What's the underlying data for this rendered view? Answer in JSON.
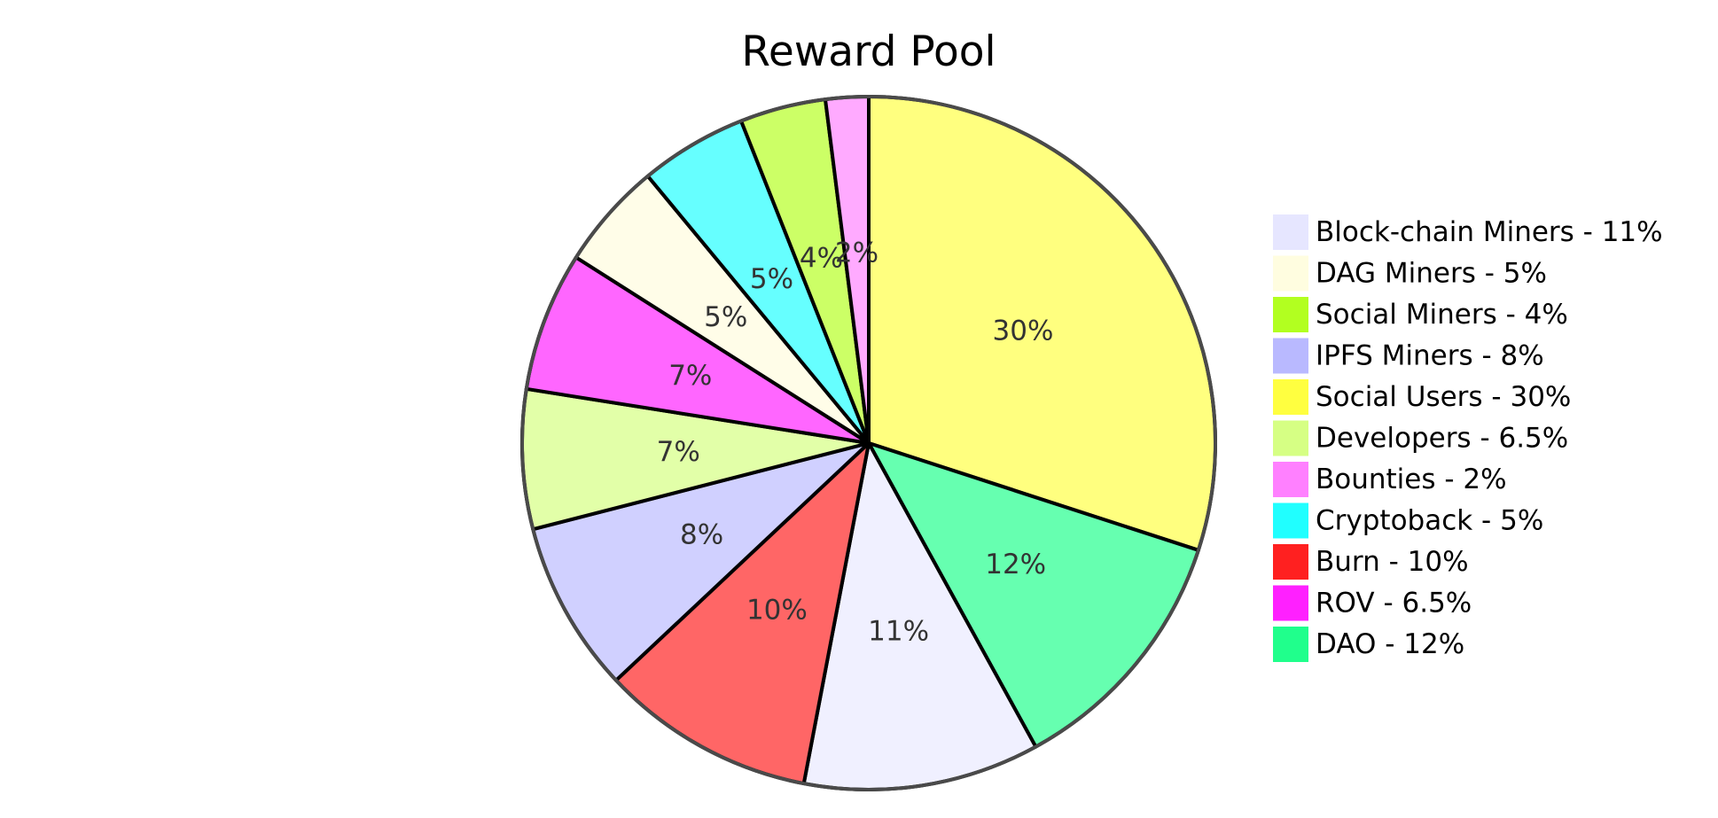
{
  "chart_data": {
    "type": "pie",
    "title": "Reward Pool",
    "slices": [
      {
        "label": "Social Users",
        "value": 30,
        "display": "30%",
        "color": "#ffff7f",
        "legend_color": "#ffff40"
      },
      {
        "label": "DAO",
        "value": 12,
        "display": "12%",
        "color": "#66ffb0",
        "legend_color": "#20ff8c"
      },
      {
        "label": "Block-chain Miners",
        "value": 11,
        "display": "11%",
        "color": "#f0f0ff",
        "legend_color": "#e6e6ff"
      },
      {
        "label": "Burn",
        "value": 10,
        "display": "10%",
        "color": "#ff6666",
        "legend_color": "#ff2020"
      },
      {
        "label": "IPFS Miners",
        "value": 8,
        "display": "8%",
        "color": "#d0d0ff",
        "legend_color": "#b9b9ff"
      },
      {
        "label": "Developers",
        "value": 6.5,
        "display": "7%",
        "color": "#e2ffa8",
        "legend_color": "#d6ff84"
      },
      {
        "label": "ROV",
        "value": 6.5,
        "display": "7%",
        "color": "#ff66ff",
        "legend_color": "#ff20ff"
      },
      {
        "label": "DAG Miners",
        "value": 5,
        "display": "5%",
        "color": "#fffde8",
        "legend_color": "#fffde0"
      },
      {
        "label": "Cryptoback",
        "value": 5,
        "display": "5%",
        "color": "#66ffff",
        "legend_color": "#20ffff"
      },
      {
        "label": "Social Miners",
        "value": 4,
        "display": "4%",
        "color": "#ccff66",
        "legend_color": "#b2ff20"
      },
      {
        "label": "Bounties",
        "value": 2,
        "display": "2%",
        "color": "#ffaaff",
        "legend_color": "#ff80ff"
      }
    ],
    "legend": [
      {
        "text": "Block-chain Miners - 11%",
        "color": "#e6e6ff"
      },
      {
        "text": "DAG Miners - 5%",
        "color": "#fffde0"
      },
      {
        "text": "Social Miners - 4%",
        "color": "#b2ff20"
      },
      {
        "text": "IPFS Miners - 8%",
        "color": "#b9b9ff"
      },
      {
        "text": "Social Users - 30%",
        "color": "#ffff40"
      },
      {
        "text": "Developers - 6.5%",
        "color": "#d6ff84"
      },
      {
        "text": "Bounties - 2%",
        "color": "#ff80ff"
      },
      {
        "text": "Cryptoback - 5%",
        "color": "#20ffff"
      },
      {
        "text": "Burn - 10%",
        "color": "#ff2020"
      },
      {
        "text": "ROV - 6.5%",
        "color": "#ff20ff"
      },
      {
        "text": "DAO - 12%",
        "color": "#20ff8c"
      }
    ],
    "legend_position": "right"
  }
}
